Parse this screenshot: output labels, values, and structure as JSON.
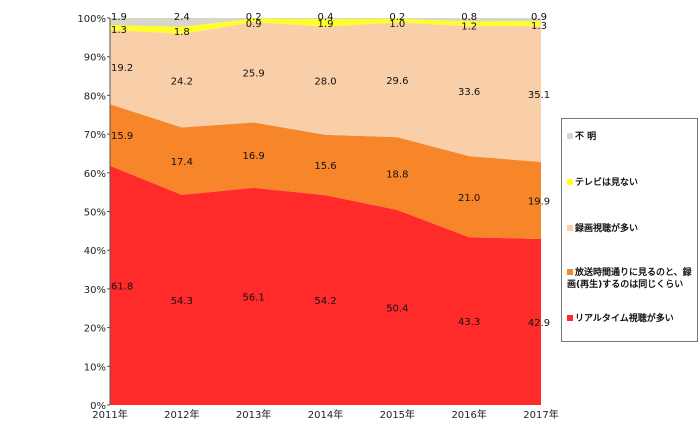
{
  "chart_data": {
    "type": "area",
    "stacked": true,
    "percent": true,
    "title": "",
    "xlabel": "",
    "ylabel": "",
    "ylim": [
      0,
      100
    ],
    "yticks": [
      "0%",
      "10%",
      "20%",
      "30%",
      "40%",
      "50%",
      "60%",
      "70%",
      "80%",
      "90%",
      "100%"
    ],
    "categories": [
      "2011年",
      "2012年",
      "2013年",
      "2014年",
      "2015年",
      "2016年",
      "2017年"
    ],
    "series": [
      {
        "name": "リアルタイム視聴が多い",
        "color": "#ff2a2a",
        "values": [
          61.8,
          54.3,
          56.1,
          54.2,
          50.4,
          43.3,
          42.9
        ]
      },
      {
        "name": "放送時間通りに見るのと、録画(再生)するのは同じくらい",
        "color": "#f7862a",
        "values": [
          15.9,
          17.4,
          16.9,
          15.6,
          18.8,
          21.0,
          19.9
        ]
      },
      {
        "name": "録画視聴が多い",
        "color": "#f9cfaa",
        "values": [
          19.2,
          24.2,
          25.9,
          28.0,
          29.6,
          33.6,
          35.1
        ]
      },
      {
        "name": "テレビは見ない",
        "color": "#ffff2a",
        "values": [
          1.3,
          1.8,
          0.9,
          1.9,
          1.0,
          1.2,
          1.3
        ]
      },
      {
        "name": "不明",
        "color": "#d9d5c8",
        "values": [
          1.9,
          2.4,
          0.2,
          0.4,
          0.2,
          0.8,
          0.9
        ]
      }
    ],
    "legend": {
      "position": "right",
      "order": [
        4,
        3,
        2,
        1,
        0
      ],
      "labels": [
        "不 明",
        "テレビは見ない",
        "録画視聴が多い",
        "放送時間通りに見るのと、録画(再生)するのは同じくらい",
        "リアルタイム視聴が多い"
      ]
    },
    "grid": false
  }
}
